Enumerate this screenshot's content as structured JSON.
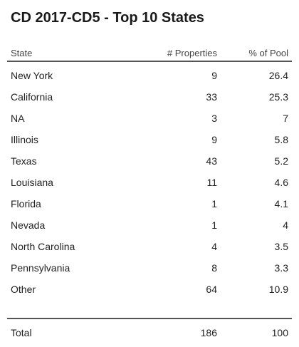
{
  "title": "CD 2017-CD5 - Top 10 States",
  "table": {
    "columns": [
      "State",
      "# Properties",
      "% of Pool"
    ],
    "rows": [
      {
        "state": "New York",
        "properties": "9",
        "pool": "26.4"
      },
      {
        "state": "California",
        "properties": "33",
        "pool": "25.3"
      },
      {
        "state": "NA",
        "properties": "3",
        "pool": "7"
      },
      {
        "state": "Illinois",
        "properties": "9",
        "pool": "5.8"
      },
      {
        "state": "Texas",
        "properties": "43",
        "pool": "5.2"
      },
      {
        "state": "Louisiana",
        "properties": "11",
        "pool": "4.6"
      },
      {
        "state": "Florida",
        "properties": "1",
        "pool": "4.1"
      },
      {
        "state": "Nevada",
        "properties": "1",
        "pool": "4"
      },
      {
        "state": "North Carolina",
        "properties": "4",
        "pool": "3.5"
      },
      {
        "state": "Pennsylvania",
        "properties": "8",
        "pool": "3.3"
      },
      {
        "state": "Other",
        "properties": "64",
        "pool": "10.9"
      }
    ],
    "total": {
      "state": "Total",
      "properties": "186",
      "pool": "100"
    }
  },
  "chart_data": {
    "type": "table",
    "title": "CD 2017-CD5 - Top 10 States",
    "columns": [
      "State",
      "# Properties",
      "% of Pool"
    ],
    "rows": [
      [
        "New York",
        9,
        26.4
      ],
      [
        "California",
        33,
        25.3
      ],
      [
        "NA",
        3,
        7
      ],
      [
        "Illinois",
        9,
        5.8
      ],
      [
        "Texas",
        43,
        5.2
      ],
      [
        "Louisiana",
        11,
        4.6
      ],
      [
        "Florida",
        1,
        4.1
      ],
      [
        "Nevada",
        1,
        4
      ],
      [
        "North Carolina",
        4,
        3.5
      ],
      [
        "Pennsylvania",
        8,
        3.3
      ],
      [
        "Other",
        64,
        10.9
      ]
    ],
    "total": [
      "Total",
      186,
      100
    ]
  }
}
